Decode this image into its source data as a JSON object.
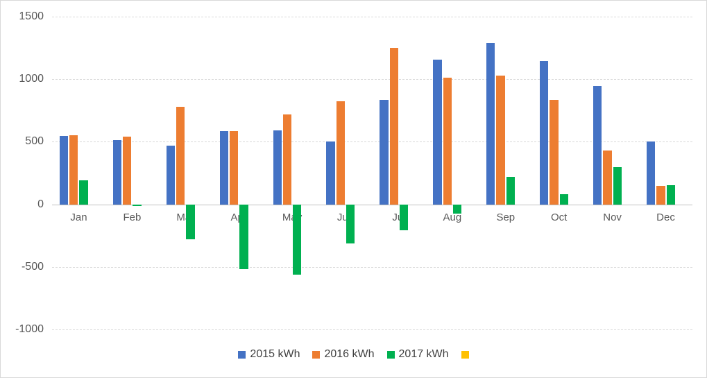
{
  "chart_data": {
    "type": "bar",
    "title": "",
    "categories": [
      "Jan",
      "Feb",
      "Mar",
      "Apr",
      "May",
      "Jun",
      "Jul",
      "Aug",
      "Sep",
      "Oct",
      "Nov",
      "Dec"
    ],
    "series": [
      {
        "name": "2015 kWh",
        "color": "#4472C4",
        "values": [
          545,
          515,
          470,
          585,
          590,
          505,
          835,
          1155,
          1290,
          1145,
          945,
          500
        ]
      },
      {
        "name": "2016 kWh",
        "color": "#ED7D31",
        "values": [
          555,
          540,
          780,
          585,
          720,
          825,
          1250,
          1010,
          1030,
          835,
          430,
          145
        ]
      },
      {
        "name": "2017 kWh",
        "color": "#00B050",
        "values": [
          190,
          -15,
          -280,
          -520,
          -565,
          -315,
          -210,
          -75,
          220,
          80,
          295,
          155
        ]
      },
      {
        "name": "",
        "color": "#FFC000",
        "values": [
          0,
          0,
          0,
          0,
          0,
          0,
          0,
          0,
          0,
          0,
          0,
          0
        ]
      }
    ],
    "xlabel": "",
    "ylabel": "",
    "ylim": [
      -1000,
      1500
    ],
    "yticks": [
      1500,
      1000,
      500,
      0,
      -500,
      -1000
    ],
    "grid": true,
    "legend_position": "bottom"
  },
  "colors": {
    "background": "#FFFFFF",
    "gridline": "#D9D9D9",
    "zero_line": "#BFBFBF",
    "tick_label": "#595959",
    "legend_text": "#404040",
    "series_2015": "#4472C4",
    "series_2016": "#ED7D31",
    "series_2017": "#00B050",
    "series_unnamed": "#FFC000"
  }
}
